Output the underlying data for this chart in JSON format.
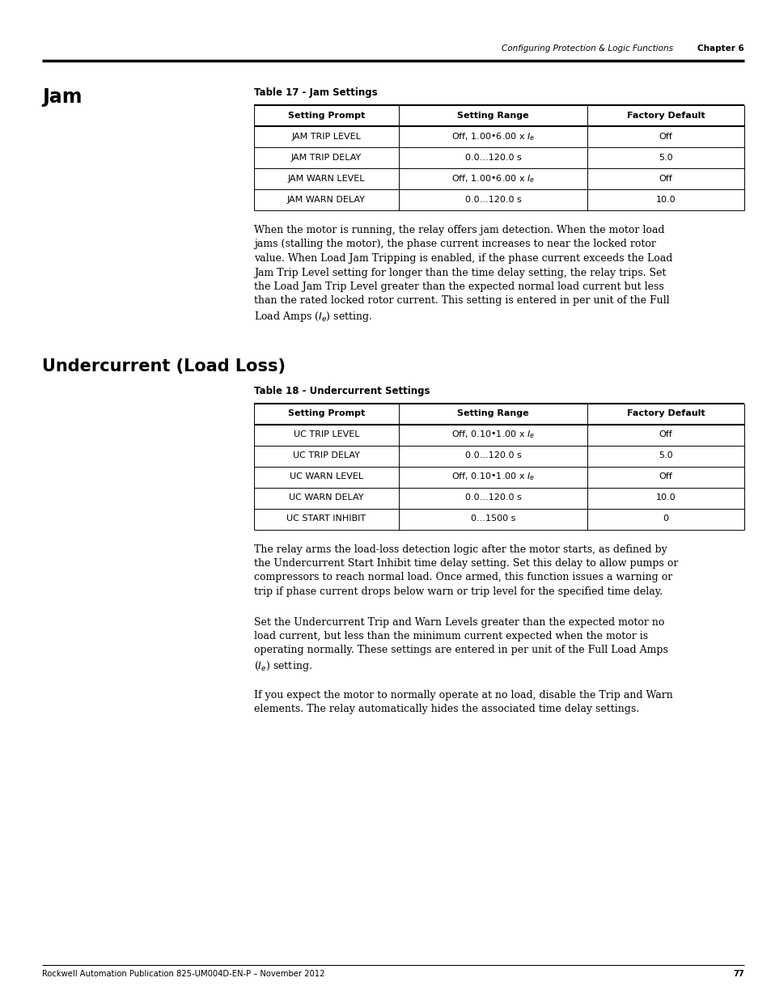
{
  "header_right": "Configuring Protection & Logic Functions",
  "header_chapter": "Chapter 6",
  "page_number": "77",
  "footer_text": "Rockwell Automation Publication 825-UM004D-EN-P – November 2012",
  "section1_title": "Jam",
  "table1_title": "Table 17 - Jam Settings",
  "table1_headers": [
    "Setting Prompt",
    "Setting Range",
    "Factory Default"
  ],
  "table1_rows": [
    [
      "JAM TRIP LEVEL",
      "Off, 1.00•6.00 x $I_e$",
      "Off"
    ],
    [
      "JAM TRIP DELAY",
      "0.0…120.0 s",
      "5.0"
    ],
    [
      "JAM WARN LEVEL",
      "Off, 1.00•6.00 x $I_e$",
      "Off"
    ],
    [
      "JAM WARN DELAY",
      "0.0…120.0 s",
      "10.0"
    ]
  ],
  "para1_lines": [
    "When the motor is running, the relay offers jam detection. When the motor load",
    "jams (stalling the motor), the phase current increases to near the locked rotor",
    "value. When Load Jam Tripping is enabled, if the phase current exceeds the Load",
    "Jam Trip Level setting for longer than the time delay setting, the relay trips. Set",
    "the Load Jam Trip Level greater than the expected normal load current but less",
    "than the rated locked rotor current. This setting is entered in per unit of the Full",
    "Load Amps ($I_e$) setting."
  ],
  "section2_title": "Undercurrent (Load Loss)",
  "table2_title": "Table 18 - Undercurrent Settings",
  "table2_headers": [
    "Setting Prompt",
    "Setting Range",
    "Factory Default"
  ],
  "table2_rows": [
    [
      "UC TRIP LEVEL",
      "Off, 0.10•1.00 x $I_e$",
      "Off"
    ],
    [
      "UC TRIP DELAY",
      "0.0…120.0 s",
      "5.0"
    ],
    [
      "UC WARN LEVEL",
      "Off, 0.10•1.00 x $I_e$",
      "Off"
    ],
    [
      "UC WARN DELAY",
      "0.0…120.0 s",
      "10.0"
    ],
    [
      "UC START INHIBIT",
      "0…1500 s",
      "0"
    ]
  ],
  "para2_lines": [
    "The relay arms the load-loss detection logic after the motor starts, as defined by",
    "the Undercurrent Start Inhibit time delay setting. Set this delay to allow pumps or",
    "compressors to reach normal load. Once armed, this function issues a warning or",
    "trip if phase current drops below warn or trip level for the specified time delay."
  ],
  "para3_lines": [
    "Set the Undercurrent Trip and Warn Levels greater than the expected motor no",
    "load current, but less than the minimum current expected when the motor is",
    "operating normally. These settings are entered in per unit of the Full Load Amps",
    "($I_e$) setting."
  ],
  "para4_lines": [
    "If you expect the motor to normally operate at no load, disable the Trip and Warn",
    "elements. The relay automatically hides the associated time delay settings."
  ],
  "bg_color": "#ffffff"
}
